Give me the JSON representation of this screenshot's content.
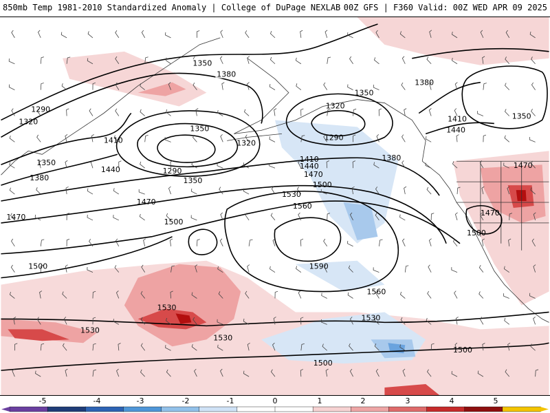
{
  "header": {
    "left_title": "850mb Temp 1981-2010 Standardized Anomaly | College of DuPage NEXLAB",
    "right_title": "00Z GFS | F360 Valid: 00Z WED APR 09 2025"
  },
  "map": {
    "contour_labels": [
      {
        "id": "lbl-1350-a",
        "text": "1350"
      },
      {
        "id": "lbl-1380-a",
        "text": "1380"
      },
      {
        "id": "lbl-1290-a",
        "text": "1290"
      },
      {
        "id": "lbl-1320-a",
        "text": "1320"
      },
      {
        "id": "lbl-1410-a",
        "text": "1410"
      },
      {
        "id": "lbl-1350-b",
        "text": "1350"
      },
      {
        "id": "lbl-1380-b",
        "text": "1380"
      },
      {
        "id": "lbl-1440-a",
        "text": "1440"
      },
      {
        "id": "lbl-1470-a",
        "text": "1470"
      },
      {
        "id": "lbl-1470-b",
        "text": "1470"
      },
      {
        "id": "lbl-1500-a",
        "text": "1500"
      },
      {
        "id": "lbl-1500-b",
        "text": "1500"
      },
      {
        "id": "lbl-1350-c",
        "text": "1350"
      },
      {
        "id": "lbl-1320-b",
        "text": "1320"
      },
      {
        "id": "lbl-1290-b",
        "text": "1290"
      },
      {
        "id": "lbl-1350-d",
        "text": "1350"
      },
      {
        "id": "lbl-1410-b",
        "text": "1410"
      },
      {
        "id": "lbl-1440-b",
        "text": "1440"
      },
      {
        "id": "lbl-1470-c",
        "text": "1470"
      },
      {
        "id": "lbl-1500-c",
        "text": "1500"
      },
      {
        "id": "lbl-1530-a",
        "text": "1530"
      },
      {
        "id": "lbl-1560-a",
        "text": "1560"
      },
      {
        "id": "lbl-1590-a",
        "text": "1590"
      },
      {
        "id": "lbl-1560-b",
        "text": "1560"
      },
      {
        "id": "lbl-1530-b",
        "text": "1530"
      },
      {
        "id": "lbl-1530-c",
        "text": "1530"
      },
      {
        "id": "lbl-1530-d",
        "text": "1530"
      },
      {
        "id": "lbl-1530-e",
        "text": "1530"
      },
      {
        "id": "lbl-1500-d",
        "text": "1500"
      },
      {
        "id": "lbl-1500-e",
        "text": "1500"
      },
      {
        "id": "lbl-1350-e",
        "text": "1350"
      },
      {
        "id": "lbl-1320-c",
        "text": "1320"
      },
      {
        "id": "lbl-1290-c",
        "text": "1290"
      },
      {
        "id": "lbl-1380-c",
        "text": "1380"
      },
      {
        "id": "lbl-1380-d",
        "text": "1380"
      },
      {
        "id": "lbl-1410-c",
        "text": "1410"
      },
      {
        "id": "lbl-1440-c",
        "text": "1440"
      },
      {
        "id": "lbl-1350-f",
        "text": "1350"
      },
      {
        "id": "lbl-1470-d",
        "text": "1470"
      },
      {
        "id": "lbl-1470-e",
        "text": "1470"
      },
      {
        "id": "lbl-1500-f",
        "text": "1500"
      }
    ]
  },
  "colorbar": {
    "ticks": [
      "-5",
      "-4",
      "-3",
      "-2",
      "-1",
      "0",
      "1",
      "2",
      "3",
      "4",
      "5"
    ],
    "colors": [
      "#6a3fa0",
      "#1f3c78",
      "#2d63b4",
      "#4f96d8",
      "#92c1ea",
      "#cfe2f6",
      "#ffffff",
      "#ffffff",
      "#f6d2d2",
      "#eea6a6",
      "#df6b6b",
      "#c62b2b",
      "#8e0f0f",
      "#f3c400"
    ]
  },
  "colors": {
    "anom_pos_light": "#f6d6d6",
    "anom_pos_mid": "#eea3a3",
    "anom_pos_strong": "#d74a4a",
    "anom_pos_max": "#b30f0f",
    "anom_neg_light": "#d7e6f6",
    "anom_neg_mid": "#a8c9ec",
    "anom_neg_strong": "#6aa3de"
  }
}
